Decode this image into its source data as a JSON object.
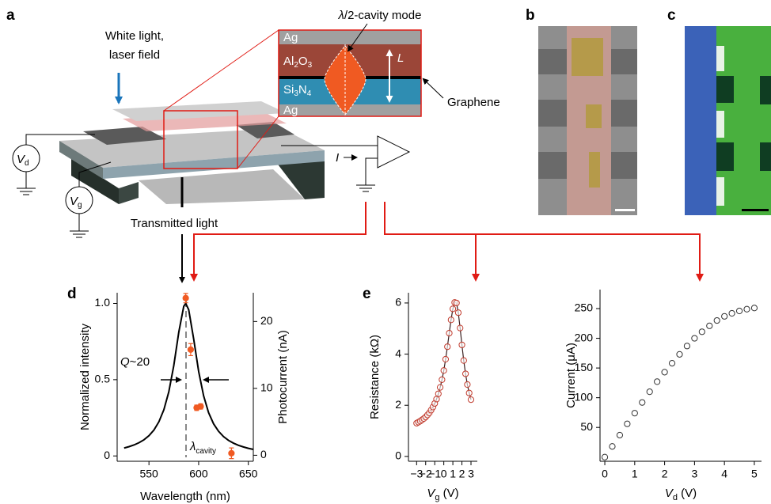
{
  "panel_labels": [
    "a",
    "b",
    "c",
    "d",
    "e"
  ],
  "schematic": {
    "incident_light": [
      "White light,",
      "laser field"
    ],
    "mode_label": [
      "λ",
      "/2-cavity mode"
    ],
    "layers": {
      "ag_top": "Ag",
      "al2o3": [
        "Al",
        "2",
        "O",
        "3"
      ],
      "si3n4": [
        "Si",
        "3",
        "N",
        "4"
      ],
      "ag_bottom": "Ag"
    },
    "cavity_length": "L",
    "graphene": "Graphene",
    "drain_source": [
      "V",
      "d"
    ],
    "gate_source": [
      "V",
      "g"
    ],
    "current": "I",
    "transmitted": "Transmitted light"
  },
  "chart_data": [
    {
      "type": "line",
      "xlabel": "Wavelength (nm)",
      "ylabel": "Normalized intensity",
      "y2label": "Photocurrent (nA)",
      "xlim": [
        518,
        655
      ],
      "xticks": [
        550,
        600,
        650
      ],
      "ylim": [
        -0.035,
        1.07
      ],
      "yticks": [
        0,
        0.5,
        {
          "value": 1,
          "label": "1.0"
        }
      ],
      "y2lim": [
        -0.9,
        24.3
      ],
      "y2ticks": [
        0,
        10,
        20
      ],
      "annotations": {
        "q_factor": [
          "Q",
          "~20"
        ],
        "resonance": [
          "λ",
          "cavity"
        ]
      },
      "series": [
        {
          "color": "#000000",
          "x": [
            525,
            530,
            535,
            540,
            545,
            550,
            555,
            560,
            565,
            570,
            575,
            580,
            585,
            587,
            590,
            595,
            600,
            605,
            610,
            615,
            620,
            625,
            630,
            635,
            640,
            645,
            650,
            655
          ],
          "values": [
            0.052,
            0.061,
            0.072,
            0.087,
            0.106,
            0.133,
            0.17,
            0.224,
            0.303,
            0.421,
            0.593,
            0.811,
            0.981,
            1.0,
            0.959,
            0.767,
            0.554,
            0.394,
            0.284,
            0.211,
            0.162,
            0.127,
            0.102,
            0.084,
            0.07,
            0.059,
            0.05,
            0.043
          ]
        },
        {
          "color": "#f05a22",
          "axis": "y2",
          "marker": "filled",
          "x": [
            587,
            592,
            598,
            602,
            633
          ],
          "values": [
            23.5,
            15.8,
            7.1,
            7.3,
            0.3
          ],
          "errors": [
            0.7,
            0.9,
            0.4,
            0.4,
            0.8
          ]
        }
      ]
    },
    {
      "type": "scatter",
      "xlabel": [
        "V",
        "g",
        " (V)"
      ],
      "ylabel": "Resistance (kΩ)",
      "xlim": [
        -3.9,
        3.7
      ],
      "xticks": [
        {
          "value": -3,
          "label": "−3"
        },
        {
          "value": -2,
          "label": "−2"
        },
        {
          "value": -1,
          "label": "−1"
        },
        0,
        1,
        2,
        3
      ],
      "ylim": [
        -0.19,
        6.4
      ],
      "yticks": [
        0,
        2,
        4,
        6
      ],
      "series": [
        {
          "color": "#c0392b",
          "marker": "open",
          "line_color": "#3a2020",
          "x": [
            -3,
            -2.8,
            -2.6,
            -2.4,
            -2.2,
            -2,
            -1.8,
            -1.6,
            -1.4,
            -1.2,
            -1,
            -0.8,
            -0.6,
            -0.4,
            -0.2,
            0,
            0.2,
            0.4,
            0.6,
            0.8,
            1,
            1.2,
            1.4,
            1.6,
            1.8,
            2,
            2.2,
            2.4,
            2.6,
            2.8,
            3
          ],
          "values": [
            1.3,
            1.34,
            1.38,
            1.43,
            1.48,
            1.54,
            1.62,
            1.7,
            1.81,
            1.93,
            2.07,
            2.24,
            2.45,
            2.7,
            3.0,
            3.36,
            3.8,
            4.29,
            4.82,
            5.34,
            5.77,
            6.02,
            6.0,
            5.62,
            5.02,
            4.36,
            3.75,
            3.23,
            2.81,
            2.48,
            2.22
          ]
        }
      ]
    },
    {
      "type": "scatter",
      "xlabel": [
        "V",
        "d",
        " (V)"
      ],
      "ylabel": "Current (μA)",
      "xlim": [
        -0.16,
        5.24
      ],
      "xticks": [
        0,
        1,
        2,
        3,
        4,
        5
      ],
      "ylim": [
        -7,
        282
      ],
      "yticks": [
        50,
        100,
        150,
        200,
        250
      ],
      "series": [
        {
          "color": "#333333",
          "marker": "open",
          "x": [
            0,
            0.25,
            0.5,
            0.75,
            1,
            1.25,
            1.5,
            1.75,
            2,
            2.25,
            2.5,
            2.75,
            3,
            3.25,
            3.5,
            3.75,
            4,
            4.25,
            4.5,
            4.75,
            5
          ],
          "values": [
            0,
            18,
            37,
            56,
            74,
            92,
            110,
            127,
            143,
            158,
            173,
            187,
            200,
            211,
            221,
            230,
            237,
            242,
            246,
            249,
            251
          ]
        }
      ]
    }
  ]
}
